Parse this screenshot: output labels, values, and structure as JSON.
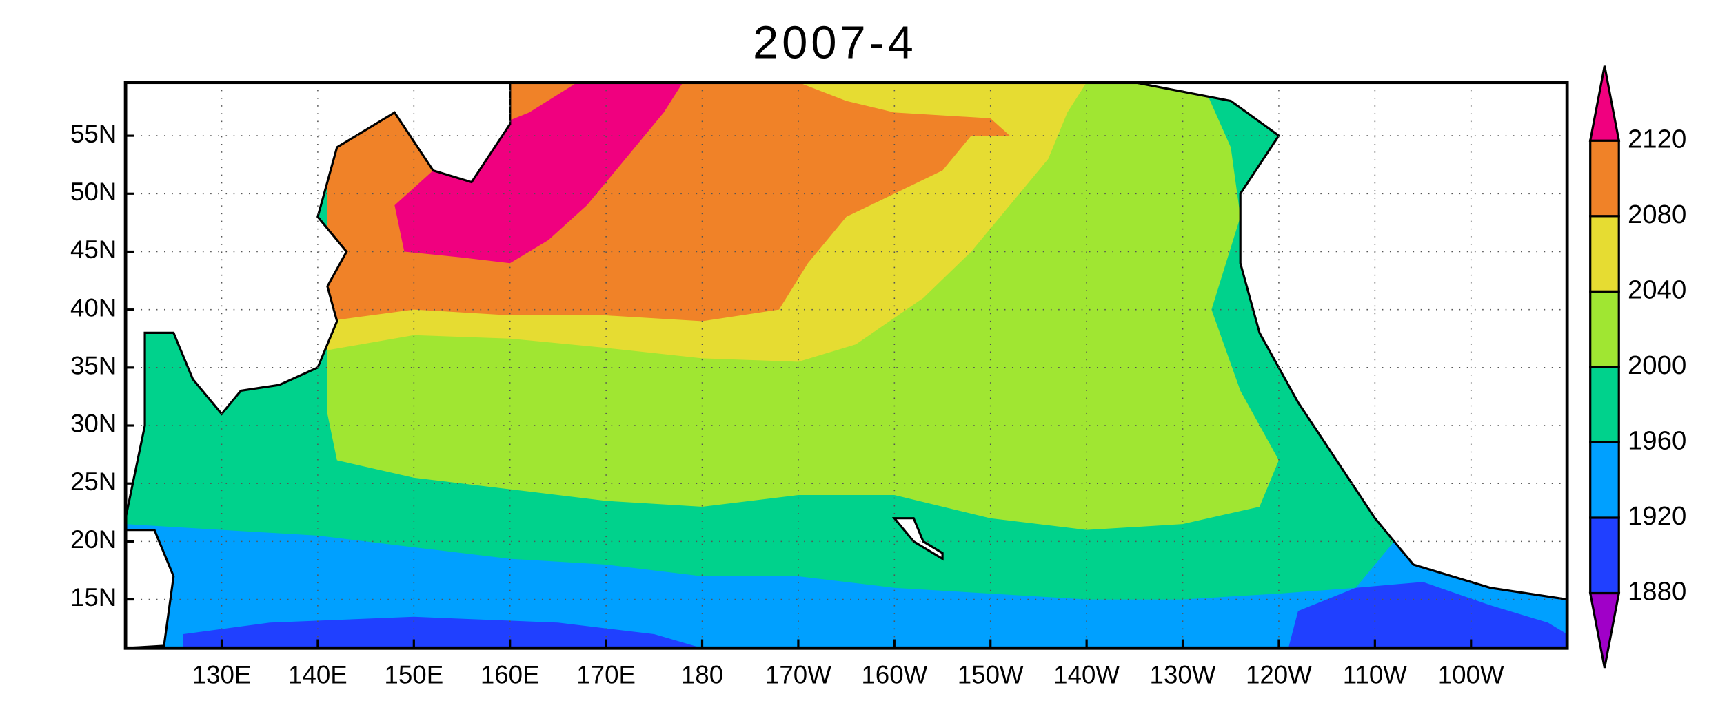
{
  "chart_data": {
    "type": "contour",
    "title": "2007-4",
    "xlim": [
      120,
      270
    ],
    "ylim": [
      10.8,
      59.6
    ],
    "xticks": [
      {
        "value": 130,
        "label": "130E"
      },
      {
        "value": 140,
        "label": "140E"
      },
      {
        "value": 150,
        "label": "150E"
      },
      {
        "value": 160,
        "label": "160E"
      },
      {
        "value": 170,
        "label": "170E"
      },
      180,
      {
        "value": 190,
        "label": "170W"
      },
      {
        "value": 200,
        "label": "160W"
      },
      {
        "value": 210,
        "label": "150W"
      },
      {
        "value": 220,
        "label": "140W"
      },
      {
        "value": 230,
        "label": "130W"
      },
      {
        "value": 240,
        "label": "120W"
      },
      {
        "value": 250,
        "label": "110W"
      },
      {
        "value": 260,
        "label": "100W"
      }
    ],
    "yticks": [
      {
        "value": 15,
        "label": "15N"
      },
      {
        "value": 20,
        "label": "20N"
      },
      {
        "value": 25,
        "label": "25N"
      },
      {
        "value": 30,
        "label": "30N"
      },
      {
        "value": 35,
        "label": "35N"
      },
      {
        "value": 40,
        "label": "40N"
      },
      {
        "value": 45,
        "label": "45N"
      },
      {
        "value": 50,
        "label": "50N"
      },
      {
        "value": 55,
        "label": "55N"
      }
    ],
    "grid": true,
    "colorbar": {
      "levels": [
        1880,
        1920,
        1960,
        2000,
        2040,
        2080,
        2120
      ],
      "colors": [
        "#a000c8",
        "#2040ff",
        "#00a0ff",
        "#00d28c",
        "#a0e632",
        "#e6dc32",
        "#f08228",
        "#f0007f"
      ]
    }
  }
}
